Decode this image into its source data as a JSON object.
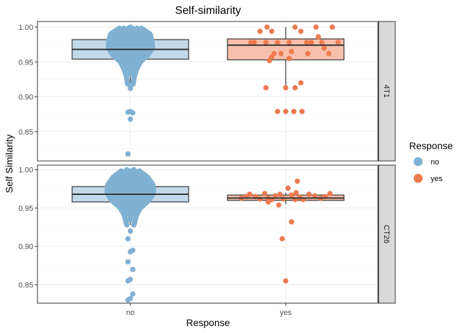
{
  "chart_data": {
    "type": "boxplot-beeswarm",
    "title": "Self-similarity",
    "xlabel": "Response",
    "ylabel": "Self Similarity",
    "categories": [
      "no",
      "yes"
    ],
    "facets": [
      "4T1",
      "CT26"
    ],
    "grid": true,
    "legend_position": "right",
    "colors": {
      "no": "#80b1d3",
      "yes": "#ee7a50"
    },
    "box_fill": {
      "no": "#c2d9ea",
      "yes": "#f7c0ad"
    },
    "legend": {
      "title": "Response",
      "items": [
        {
          "label": "no",
          "color": "#80b1d3"
        },
        {
          "label": "yes",
          "color": "#ee7a50"
        }
      ]
    },
    "panels": [
      {
        "facet": "4T1",
        "ylim": [
          0.808,
          1.008
        ],
        "yticks": [
          0.85,
          0.9,
          0.95,
          1.0
        ],
        "ytick_labels": [
          "0.85",
          "0.90",
          "0.95",
          "1.00"
        ],
        "boxes": {
          "no": {
            "q1": 0.954,
            "median": 0.968,
            "q3": 0.982,
            "whisker_low": 0.912,
            "whisker_high": 1.0
          },
          "yes": {
            "q1": 0.953,
            "median": 0.974,
            "q3": 0.983,
            "whisker_low": 0.913,
            "whisker_high": 1.0
          }
        },
        "no_distribution": [
          [
            1.0,
            0.16
          ],
          [
            0.99,
            0.34
          ],
          [
            0.98,
            0.37
          ],
          [
            0.97,
            0.38
          ],
          [
            0.96,
            0.3
          ],
          [
            0.95,
            0.17
          ],
          [
            0.94,
            0.11
          ],
          [
            0.93,
            0.07
          ],
          [
            0.92,
            0.05
          ],
          [
            0.912,
            0.04
          ]
        ],
        "no_outliers": [
          0.879,
          0.878,
          0.877,
          0.868,
          0.818
        ],
        "yes_points": [
          [
            -0.3,
            0.978
          ],
          [
            -0.27,
            0.978
          ],
          [
            -0.22,
            0.994
          ],
          [
            -0.16,
            1.0
          ],
          [
            -0.17,
            0.978
          ],
          [
            -0.12,
            0.994
          ],
          [
            -0.07,
            0.978
          ],
          [
            0.03,
            0.978
          ],
          [
            0.08,
            1.0
          ],
          [
            0.13,
            0.994
          ],
          [
            0.18,
            0.978
          ],
          [
            0.22,
            0.978
          ],
          [
            0.26,
            1.0
          ],
          [
            0.28,
            0.986
          ],
          [
            0.31,
            0.978
          ],
          [
            0.33,
            0.97
          ],
          [
            0.4,
            1.0
          ],
          [
            0.45,
            0.978
          ],
          [
            -0.1,
            0.962
          ],
          [
            -0.04,
            0.962
          ],
          [
            0.05,
            0.965
          ],
          [
            0.19,
            0.962
          ],
          [
            0.37,
            0.962
          ],
          [
            -0.12,
            0.957
          ],
          [
            -0.14,
            0.952
          ],
          [
            0.03,
            0.955
          ],
          [
            -0.17,
            0.913
          ],
          [
            0.0,
            0.913
          ],
          [
            0.08,
            0.913
          ],
          [
            0.13,
            0.92
          ],
          [
            -0.07,
            0.879
          ],
          [
            0.0,
            0.879
          ],
          [
            0.14,
            0.879
          ],
          [
            0.07,
            0.879
          ]
        ]
      },
      {
        "facet": "CT26",
        "ylim": [
          0.826,
          1.006
        ],
        "yticks": [
          0.85,
          0.9,
          0.95,
          1.0
        ],
        "ytick_labels": [
          "0.85",
          "0.90",
          "0.95",
          "1.00"
        ],
        "boxes": {
          "no": {
            "q1": 0.958,
            "median": 0.968,
            "q3": 0.978,
            "whisker_low": 0.928,
            "whisker_high": 1.0
          },
          "yes": {
            "q1": 0.96,
            "median": 0.963,
            "q3": 0.967,
            "whisker_low": 0.955,
            "whisker_high": 0.97
          }
        },
        "no_distribution": [
          [
            1.0,
            0.13
          ],
          [
            0.99,
            0.3
          ],
          [
            0.98,
            0.39
          ],
          [
            0.97,
            0.4
          ],
          [
            0.96,
            0.32
          ],
          [
            0.95,
            0.17
          ],
          [
            0.94,
            0.1
          ],
          [
            0.93,
            0.07
          ],
          [
            0.928,
            0.06
          ]
        ],
        "no_outliers": [
          0.92,
          0.91,
          0.895,
          0.893,
          0.88,
          0.87,
          0.857,
          0.855,
          0.838,
          0.832,
          0.83
        ],
        "yes_points": [
          [
            -0.38,
            0.963
          ],
          [
            -0.34,
            0.965
          ],
          [
            -0.31,
            0.968
          ],
          [
            -0.26,
            0.965
          ],
          [
            -0.22,
            0.962
          ],
          [
            -0.18,
            0.969
          ],
          [
            -0.12,
            0.961
          ],
          [
            -0.09,
            0.966
          ],
          [
            -0.05,
            0.968
          ],
          [
            -0.02,
            0.962
          ],
          [
            0.02,
            0.976
          ],
          [
            0.05,
            0.967
          ],
          [
            0.09,
            0.97
          ],
          [
            0.12,
            0.964
          ],
          [
            0.15,
            0.961
          ],
          [
            0.2,
            0.968
          ],
          [
            0.25,
            0.966
          ],
          [
            0.3,
            0.963
          ],
          [
            0.34,
            0.965
          ],
          [
            0.38,
            0.969
          ],
          [
            -0.15,
            0.958
          ],
          [
            -0.06,
            0.954
          ],
          [
            0.08,
            0.961
          ],
          [
            0.1,
            0.985
          ],
          [
            -0.15,
            0.963
          ],
          [
            0.05,
            0.932
          ],
          [
            -0.03,
            0.91
          ],
          [
            0.0,
            0.855
          ]
        ]
      }
    ]
  }
}
